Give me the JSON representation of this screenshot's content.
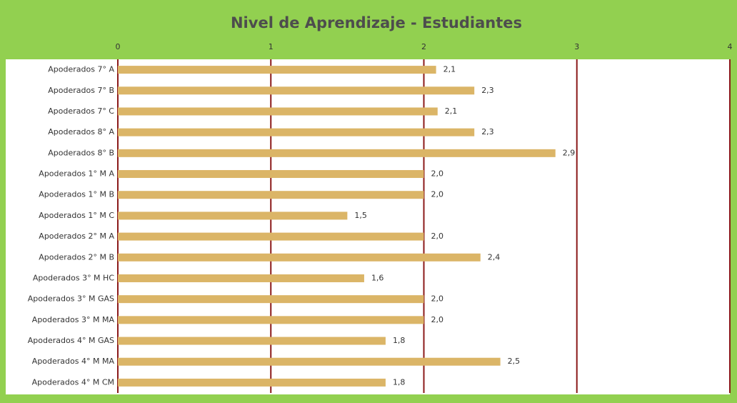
{
  "chart_data": {
    "type": "barh",
    "title": "Nivel de Aprendizaje - Estudiantes",
    "categories": [
      "Apoderados 7° A",
      "Apoderados 7° B",
      "Apoderados 7° C",
      "Apoderados 8° A",
      "Apoderados 8° B",
      "Apoderados 1° M A",
      "Apoderados 1° M B",
      "Apoderados 1° M C",
      "Apoderados 2° M A",
      "Apoderados 2° M B",
      "Apoderados 3° M HC",
      "Apoderados 3° M GAS",
      "Apoderados 3° M MA",
      "Apoderados 4° M GAS",
      "Apoderados 4° M MA",
      "Apoderados 4° M CM"
    ],
    "values": [
      2.08,
      2.33,
      2.09,
      2.33,
      2.86,
      2.0,
      2.0,
      1.5,
      2.0,
      2.37,
      1.61,
      2.0,
      2.0,
      1.75,
      2.5,
      1.75
    ],
    "value_labels": [
      "2,1",
      "2,3",
      "2,1",
      "2,3",
      "2,9",
      "2,0",
      "2,0",
      "1,5",
      "2,0",
      "2,4",
      "1,6",
      "2,0",
      "2,0",
      "1,8",
      "2,5",
      "1,8"
    ],
    "color": "#dbb567",
    "grid_color": "#8b1a1a",
    "xlim": [
      0,
      4
    ],
    "xticks": [
      0,
      1,
      2,
      3,
      4
    ],
    "grid": true
  }
}
